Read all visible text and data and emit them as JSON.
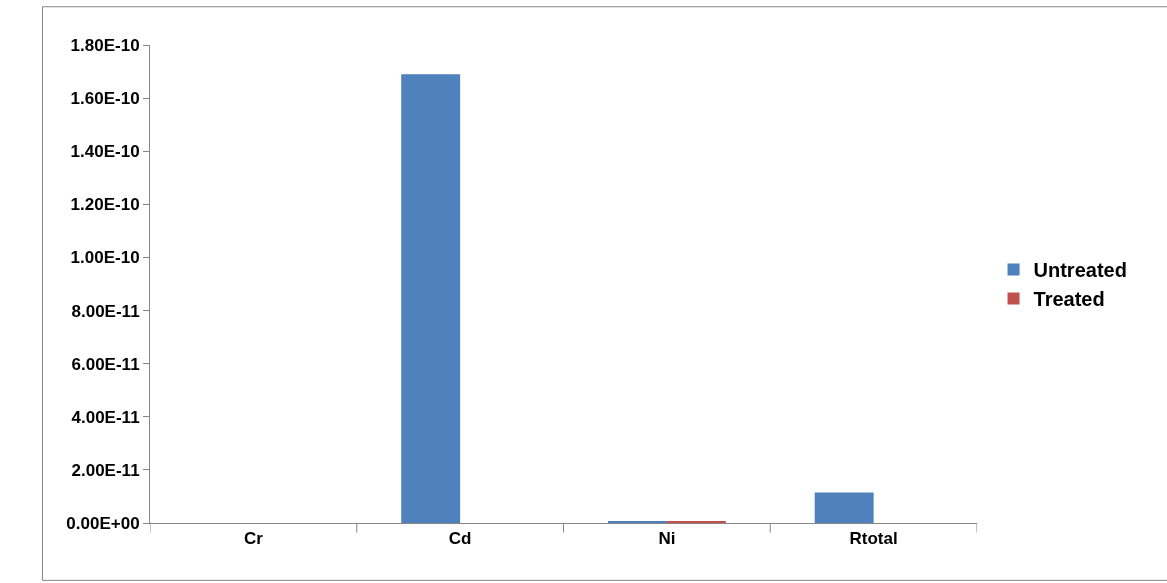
{
  "chart_data": {
    "type": "bar",
    "categories": [
      "Cr",
      "Cd",
      "Ni",
      "Rtotal"
    ],
    "series": [
      {
        "name": "Untreated",
        "color": "#4f81bd",
        "values": [
          0,
          1.69e-10,
          5e-13,
          1.15e-11
        ]
      },
      {
        "name": "Treated",
        "color": "#c0504d",
        "values": [
          0,
          0,
          5e-13,
          0
        ]
      }
    ],
    "ylim": [
      0,
      1.8e-10
    ],
    "yticks": [
      {
        "value": 0,
        "label": "0.00E+00"
      },
      {
        "value": 2e-11,
        "label": "2.00E-11"
      },
      {
        "value": 4e-11,
        "label": "4.00E-11"
      },
      {
        "value": 6e-11,
        "label": "6.00E-11"
      },
      {
        "value": 8e-11,
        "label": "8.00E-11"
      },
      {
        "value": 1e-10,
        "label": "1.00E-10"
      },
      {
        "value": 1.2e-10,
        "label": "1.20E-10"
      },
      {
        "value": 1.4e-10,
        "label": "1.40E-10"
      },
      {
        "value": 1.6e-10,
        "label": "1.60E-10"
      },
      {
        "value": 1.8e-10,
        "label": "1.80E-10"
      }
    ],
    "legend": "right"
  }
}
